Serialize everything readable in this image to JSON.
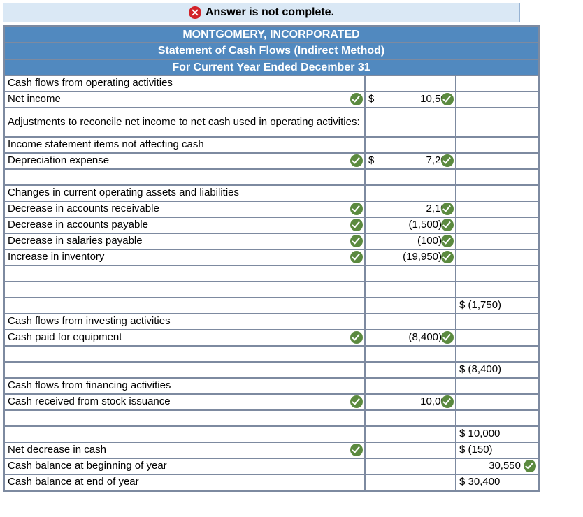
{
  "banner": {
    "text": "Answer is not complete."
  },
  "header": {
    "company": "MONTGOMERY, INCORPORATED",
    "title": "Statement of Cash Flows (Indirect Method)",
    "period": "For Current Year Ended December 31"
  },
  "rows": [
    {
      "label": "Cash flows from operating activities",
      "indent": 0
    },
    {
      "label": "Net income",
      "indent": 1,
      "labelCheck": true,
      "amt1": "10,500",
      "amt1Dollar": true,
      "amt1Check": true
    },
    {
      "label": "Adjustments to reconcile net income to net cash used in operating activities:",
      "indent": 1,
      "tall": true
    },
    {
      "label": "Income statement items not affecting cash",
      "indent": 1
    },
    {
      "label": "Depreciation expense",
      "indent": 1,
      "labelCheck": true,
      "amt1": "7,200",
      "amt1Dollar": true,
      "amt1Check": true
    },
    {
      "blank": true
    },
    {
      "label": "Changes in current operating assets and liabilities",
      "indent": 0
    },
    {
      "label": "Decrease in accounts receivable",
      "indent": 1,
      "labelCheck": true,
      "amt1": "2,100",
      "amt1Check": true
    },
    {
      "label": "Decrease in accounts payable",
      "indent": 1,
      "labelCheck": true,
      "amt1": "(1,500)",
      "amt1Check": true,
      "paren": true
    },
    {
      "label": "Decrease in salaries payable",
      "indent": 1,
      "labelCheck": true,
      "amt1": "(100)",
      "amt1Check": true,
      "paren": true
    },
    {
      "label": "Increase in inventory",
      "indent": 1,
      "labelCheck": true,
      "amt1": "(19,950)",
      "amt1Check": true,
      "paren": true
    },
    {
      "blank": true
    },
    {
      "blank": true
    },
    {
      "amt2": "$ (1,750)"
    },
    {
      "label": "Cash flows from investing activities",
      "indent": 0
    },
    {
      "label": "Cash paid for equipment",
      "indent": 1,
      "labelCheck": true,
      "amt1": "(8,400)",
      "amt1Check": true,
      "paren": true
    },
    {
      "blank": true
    },
    {
      "amt2": "$ (8,400)"
    },
    {
      "label": "Cash flows from financing activities",
      "indent": 0
    },
    {
      "label": "Cash received from stock issuance",
      "indent": 1,
      "labelCheck": true,
      "amt1": "10,000",
      "amt1Check": true
    },
    {
      "blank": true
    },
    {
      "amt2": "$ 10,000"
    },
    {
      "label": "Net decrease in cash",
      "indent": 0,
      "labelCheck": true,
      "amt2": "$    (150)"
    },
    {
      "label": "Cash balance at beginning of year",
      "indent": 0,
      "amt2": "30,550",
      "amt2Align": "right",
      "amt2Check": true
    },
    {
      "label": "Cash balance at end of year",
      "indent": 0,
      "amt2": "$ 30,400"
    }
  ]
}
